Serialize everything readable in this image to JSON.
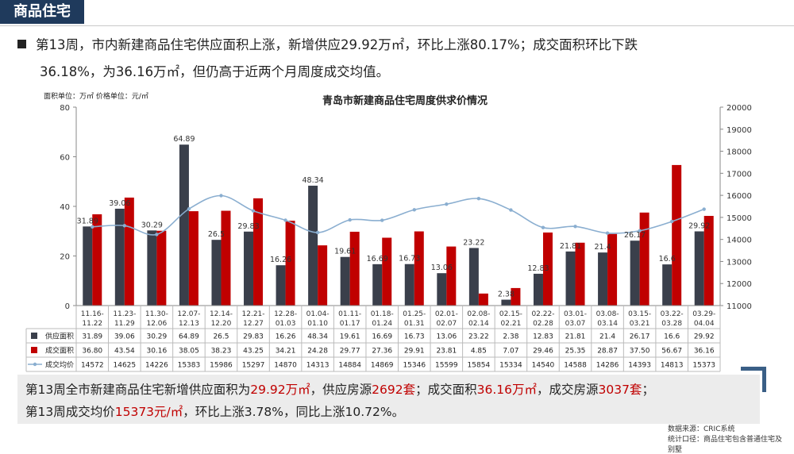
{
  "section_tag": "商品住宅",
  "headline": {
    "line1": "第13周，市内新建商品住宅供应面积上涨，新增供应29.92万㎡，环比上涨80.17%；成交面积环比下跌",
    "line2": "36.18%，为36.16万㎡，但仍高于近两个月周度成交均值。"
  },
  "summary": {
    "r1_a": "第13周全市新建商品住宅新增供应面积为",
    "r1_b": "29.92万㎡",
    "r1_c": "，供应房源",
    "r1_d": "2692套",
    "r1_e": "；成交面积",
    "r1_f": "36.16万㎡",
    "r1_g": "，成交房源",
    "r1_h": "3037套",
    "r1_i": "；",
    "r2_a": "第13周成交均价",
    "r2_b": "15373元/㎡",
    "r2_c": "，环比上涨3.78%，同比上涨10.72%。"
  },
  "source": {
    "line1": "数据来源：CRIC系统",
    "line2": "统计口径：商品住宅包含普通住宅及别墅"
  },
  "colors": {
    "supply": "#3a3f4b",
    "deal": "#c00000",
    "price": "#8aaed0",
    "tag_bg": "#1f3a5c",
    "accent_red": "#c00000"
  },
  "chart_data": {
    "type": "bar",
    "title": "青岛市新建商品住宅周度供求价情况",
    "unit_label": "面积单位：万㎡  价格单位：元/㎡",
    "left_axis": {
      "ylim": [
        0,
        80
      ],
      "ticks": [
        "0",
        "20",
        "40",
        "60",
        "80"
      ]
    },
    "right_axis": {
      "ylim": [
        11000,
        20000
      ],
      "ticks": [
        "11000",
        "12000",
        "13000",
        "14000",
        "15000",
        "16000",
        "17000",
        "18000",
        "19000",
        "20000"
      ]
    },
    "categories": [
      [
        "11.16-",
        "11.22"
      ],
      [
        "11.23-",
        "11.29"
      ],
      [
        "11.30-",
        "12.06"
      ],
      [
        "12.07-",
        "12.13"
      ],
      [
        "12.14-",
        "12.20"
      ],
      [
        "12.21-",
        "12.27"
      ],
      [
        "12.28-",
        "01.03"
      ],
      [
        "01.04-",
        "01.10"
      ],
      [
        "01.11-",
        "01.17"
      ],
      [
        "01.18-",
        "01.24"
      ],
      [
        "01.25-",
        "01.31"
      ],
      [
        "02.01-",
        "02.07"
      ],
      [
        "02.08-",
        "02.14"
      ],
      [
        "02.15-",
        "02.21"
      ],
      [
        "02.22-",
        "02.28"
      ],
      [
        "03.01-",
        "03.07"
      ],
      [
        "03.08-",
        "03.14"
      ],
      [
        "03.15-",
        "03.21"
      ],
      [
        "03.22-",
        "03.28"
      ],
      [
        "03.29-",
        "04.04"
      ]
    ],
    "series": [
      {
        "name": "供应面积",
        "type": "bar",
        "axis": "left",
        "values": [
          31.89,
          39.06,
          30.29,
          64.89,
          26.5,
          29.83,
          16.26,
          48.34,
          19.61,
          16.69,
          16.73,
          13.06,
          23.22,
          2.38,
          12.83,
          21.81,
          21.4,
          26.17,
          16.6,
          29.92
        ],
        "labels": [
          "31.89",
          "39.06",
          "30.29",
          "64.89",
          "26.5",
          "29.83",
          "16.26",
          "48.34",
          "19.61",
          "16.69",
          "16.73",
          "13.06",
          "23.22",
          "2.38",
          "12.83",
          "21.81",
          "21.4",
          "26.17",
          "16.6",
          "29.92"
        ]
      },
      {
        "name": "成交面积",
        "type": "bar",
        "axis": "left",
        "values": [
          36.8,
          43.54,
          30.16,
          38.05,
          38.23,
          43.25,
          34.21,
          24.28,
          29.77,
          27.36,
          29.91,
          23.81,
          4.85,
          7.07,
          29.46,
          25.35,
          28.87,
          37.5,
          56.67,
          36.16
        ],
        "labels": [
          "36.80",
          "43.54",
          "30.16",
          "38.05",
          "38.23",
          "43.25",
          "34.21",
          "24.28",
          "29.77",
          "27.36",
          "29.91",
          "23.81",
          "4.85",
          "7.07",
          "29.46",
          "25.35",
          "28.87",
          "37.50",
          "56.67",
          "36.16"
        ]
      },
      {
        "name": "成交均价",
        "type": "line",
        "axis": "right",
        "values": [
          14572,
          14625,
          14226,
          15383,
          15986,
          15297,
          14870,
          14313,
          14884,
          14869,
          15346,
          15599,
          15854,
          15334,
          14540,
          14588,
          14286,
          14393,
          14813,
          15373
        ],
        "labels": [
          "14572",
          "14625",
          "14226",
          "15383",
          "15986",
          "15297",
          "14870",
          "14313",
          "14884",
          "14869",
          "15346",
          "15599",
          "15854",
          "15334",
          "14540",
          "14588",
          "14286",
          "14393",
          "14813",
          "15373"
        ]
      }
    ]
  }
}
